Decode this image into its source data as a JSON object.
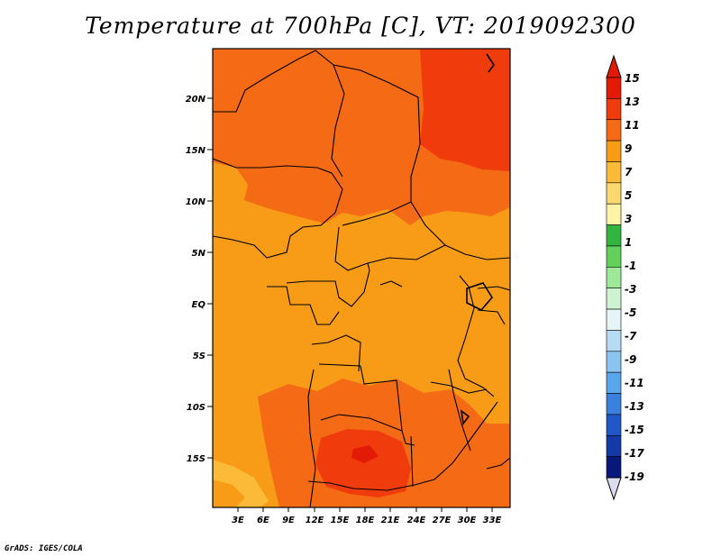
{
  "title": "Temperature at 700hPa [C], VT: 2019092300",
  "credit": "GrADS: IGES/COLA",
  "map": {
    "lat_labels": [
      "20N",
      "15N",
      "10N",
      "5N",
      "EQ",
      "5S",
      "10S",
      "15S"
    ],
    "lon_labels": [
      "3E",
      "6E",
      "9E",
      "12E",
      "15E",
      "18E",
      "21E",
      "24E",
      "27E",
      "30E",
      "33E"
    ]
  },
  "colorbar": {
    "labels": [
      "15",
      "13",
      "11",
      "9",
      "7",
      "5",
      "3",
      "1",
      "-1",
      "-3",
      "-5",
      "-7",
      "-9",
      "-11",
      "-13",
      "-15",
      "-17",
      "-19"
    ],
    "colors": [
      "#e31a05",
      "#f03c0c",
      "#f56a14",
      "#f89c18",
      "#fbbb38",
      "#fcd870",
      "#fdf4a8",
      "#33b440",
      "#62d05a",
      "#9ee89a",
      "#cdf3d0",
      "#e6f4f6",
      "#b6dcf4",
      "#8cc4f0",
      "#5aa6ea",
      "#3a80dc",
      "#2058c8",
      "#143aa6",
      "#08187a"
    ],
    "top_color": "#e31a05",
    "bottom_color": "#dcdcf0"
  }
}
